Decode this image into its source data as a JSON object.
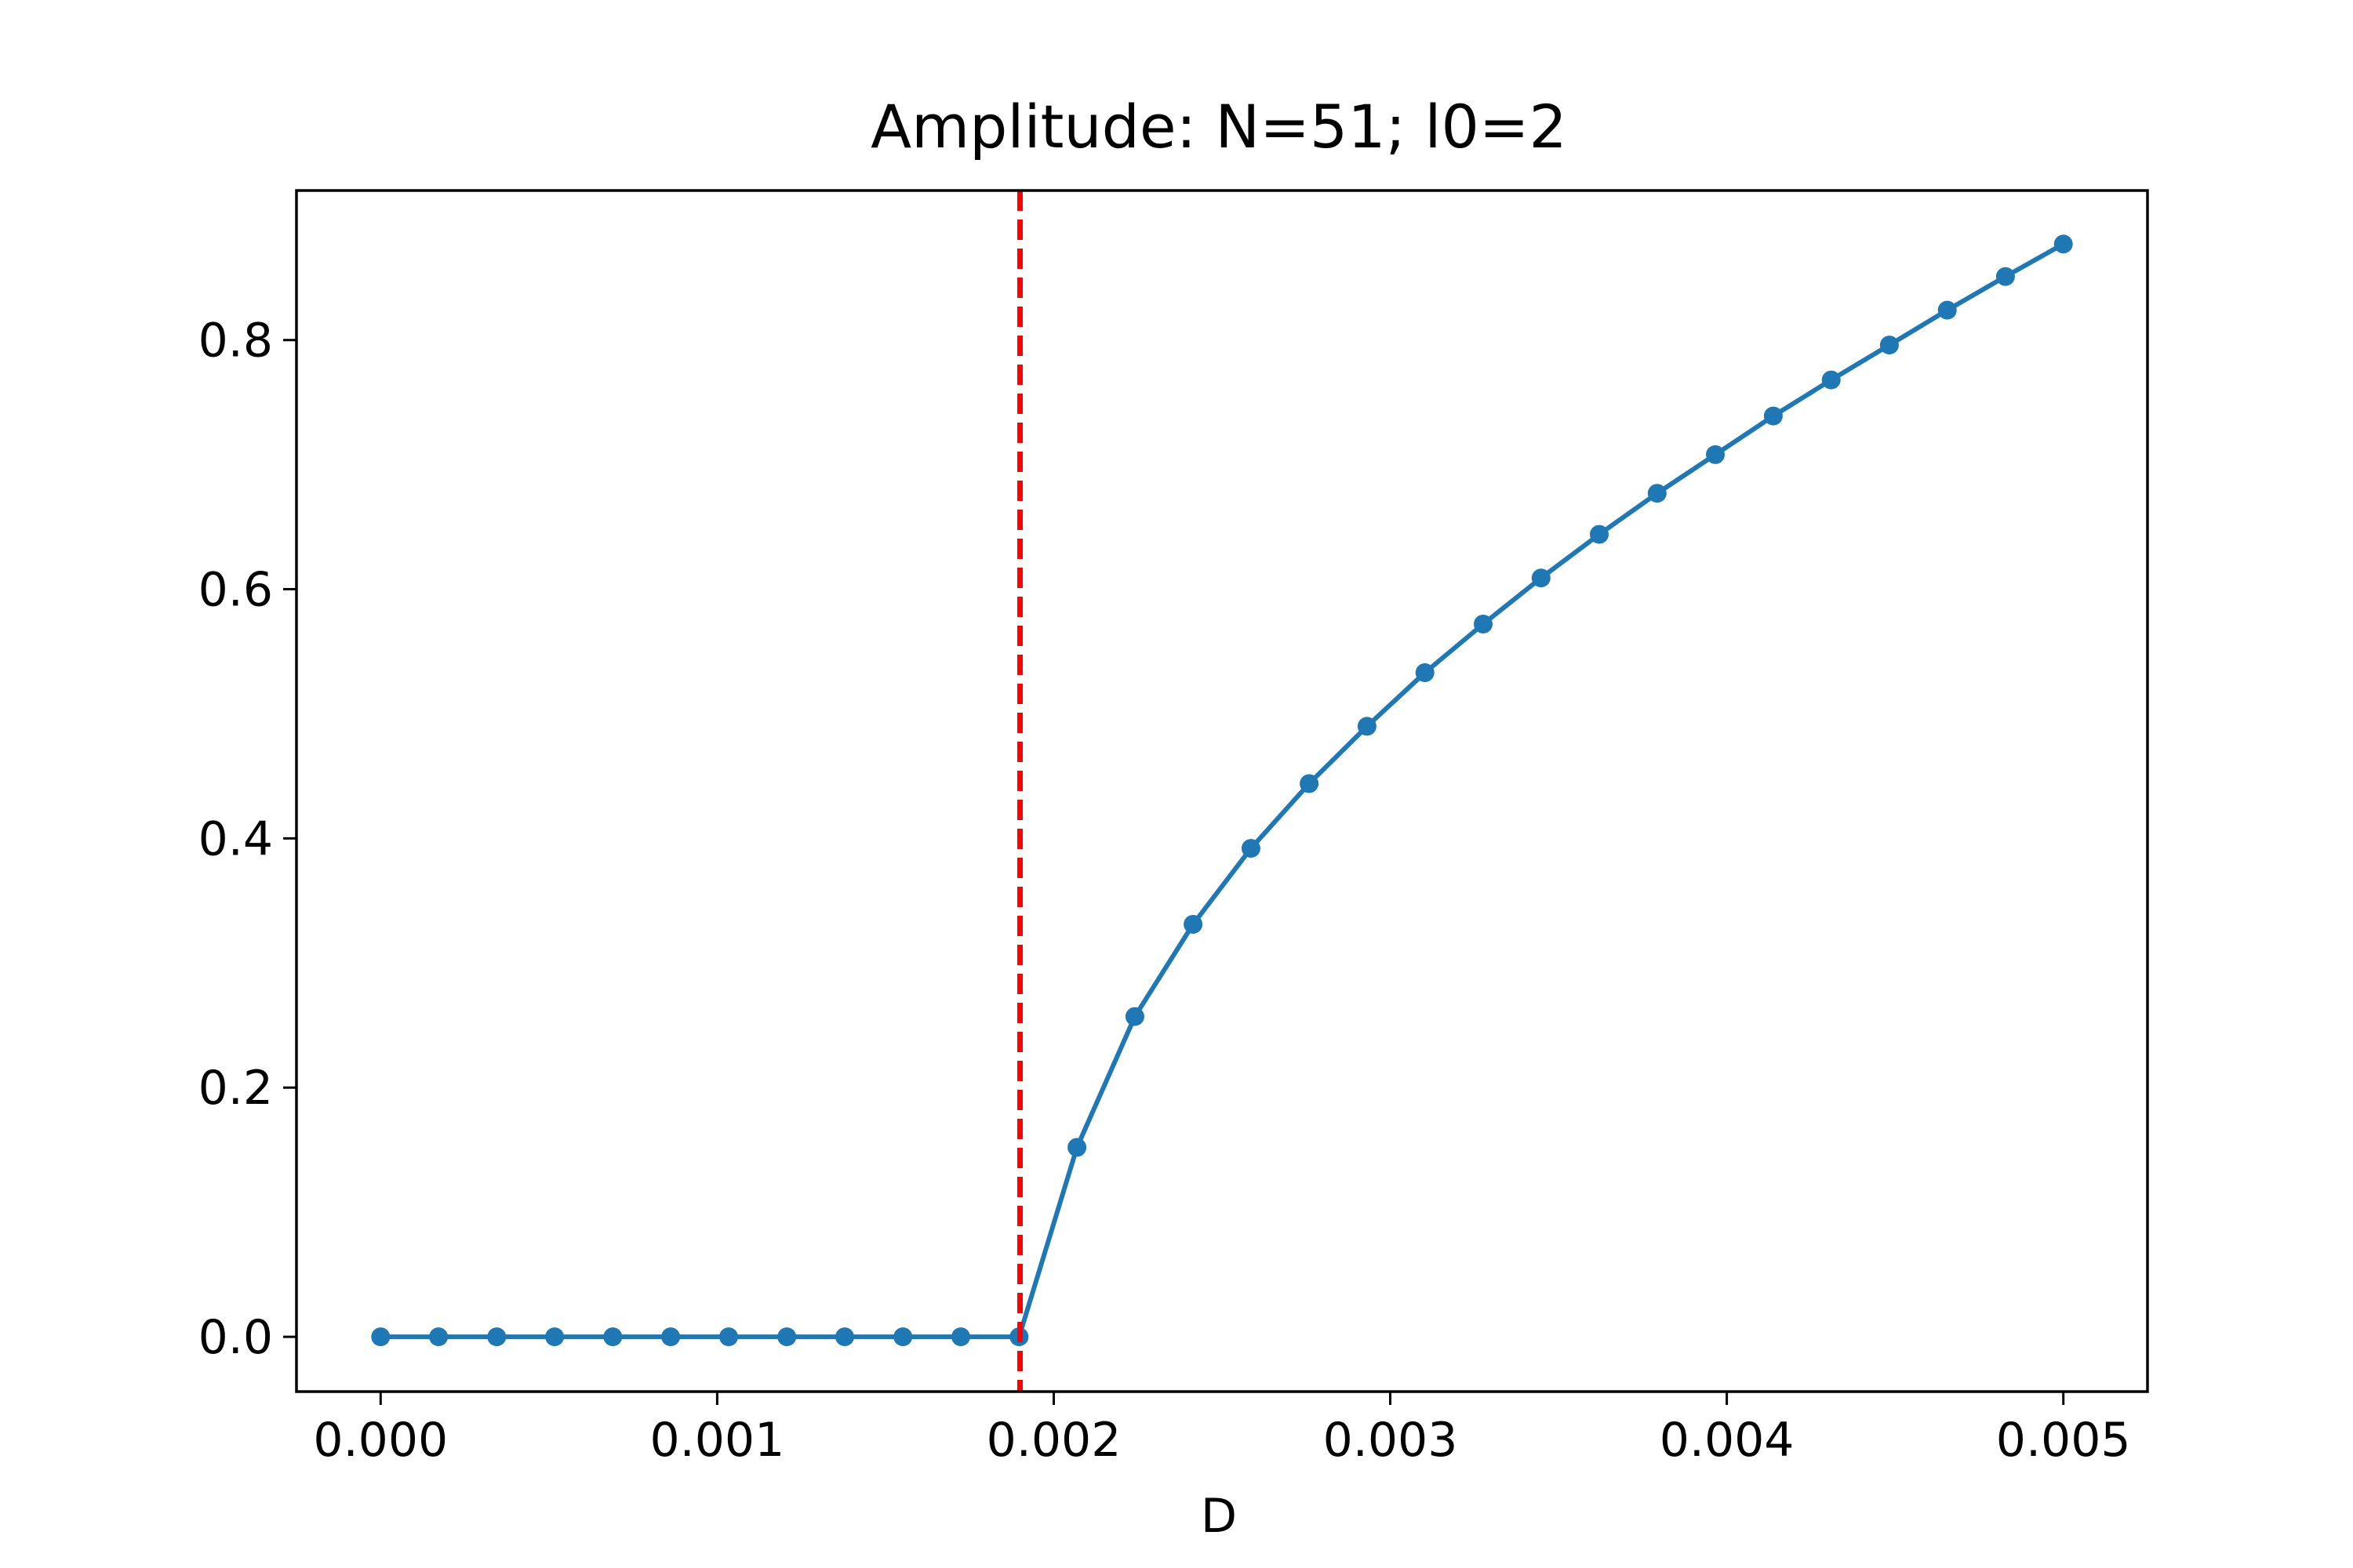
{
  "chart_data": {
    "type": "line",
    "title": "Amplitude: N=51; l0=2",
    "xlabel": "D",
    "ylabel": "",
    "xlim": [
      -0.00025,
      0.00525
    ],
    "ylim": [
      -0.044,
      0.92
    ],
    "x_ticks": [
      0.0,
      0.001,
      0.002,
      0.003,
      0.004,
      0.005
    ],
    "x_tick_labels": [
      "0.000",
      "0.001",
      "0.002",
      "0.003",
      "0.004",
      "0.005"
    ],
    "y_ticks": [
      0.0,
      0.2,
      0.4,
      0.6,
      0.8
    ],
    "y_tick_labels": [
      "0.0",
      "0.2",
      "0.4",
      "0.6",
      "0.8"
    ],
    "grid": false,
    "series": [
      {
        "color": "#1f77b4",
        "marker": "circle",
        "x": [
          0.0,
          0.000172,
          0.000345,
          0.000517,
          0.00069,
          0.000862,
          0.001034,
          0.001207,
          0.001379,
          0.001552,
          0.001724,
          0.001897,
          0.002069,
          0.002241,
          0.002414,
          0.002586,
          0.002759,
          0.002931,
          0.003103,
          0.003276,
          0.003448,
          0.003621,
          0.003793,
          0.003966,
          0.004138,
          0.00431,
          0.004483,
          0.004655,
          0.004828,
          0.005
        ],
        "y": [
          0.0,
          0.0,
          0.0,
          0.0,
          0.0,
          0.0,
          0.0,
          0.0,
          0.0,
          0.0,
          0.0,
          0.0,
          0.152,
          0.257,
          0.331,
          0.392,
          0.444,
          0.49,
          0.533,
          0.572,
          0.609,
          0.644,
          0.677,
          0.708,
          0.739,
          0.768,
          0.796,
          0.824,
          0.851,
          0.877
        ]
      }
    ],
    "reference_lines": [
      {
        "orientation": "vertical",
        "x": 0.0019,
        "color": "#ff0000",
        "style": "dashed"
      }
    ]
  }
}
